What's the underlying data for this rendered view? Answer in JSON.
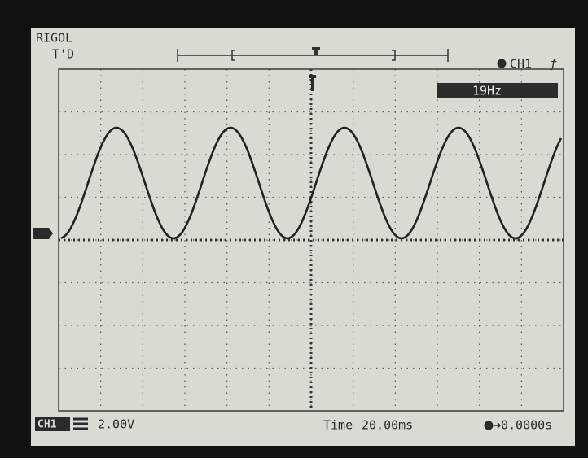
{
  "header": {
    "brand": "RIGOL",
    "status": "T'D",
    "channel": "CH1",
    "trigger_slope": "ƒ"
  },
  "measurement": {
    "frequency": "19Hz"
  },
  "footer": {
    "channel": "CH1",
    "volts_per_div": "2.00V",
    "time_label": "Time",
    "time_per_div": "20.00ms",
    "trigger_offset": "0.0000s"
  }
}
